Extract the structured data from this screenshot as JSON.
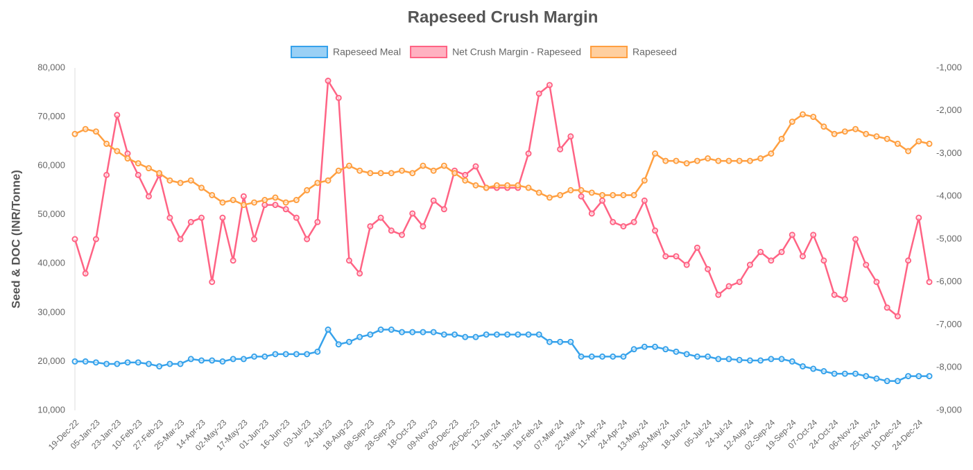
{
  "chart_data": {
    "type": "line",
    "title": "Rapeseed Crush Margin",
    "y_label": "Seed & DOC (INR/Tonne)",
    "categories": [
      "19-Dec-22",
      null,
      "05-Jan-23",
      null,
      "23-Jan-23",
      null,
      "10-Feb-23",
      null,
      "27-Feb-23",
      null,
      "25-Mar-23",
      null,
      "14-Apr-23",
      null,
      "02-May-23",
      null,
      "17-May-23",
      null,
      "01-Jun-23",
      null,
      "16-Jun-23",
      null,
      "03-Jul-23",
      null,
      "24-Jul-23",
      null,
      "18-Aug-23",
      null,
      "08-Sep-23",
      null,
      "28-Sep-23",
      null,
      "18-Oct-23",
      null,
      "09-Nov-23",
      null,
      "06-Dec-23",
      null,
      "26-Dec-23",
      null,
      "12-Jan-24",
      null,
      "31-Jan-24",
      null,
      "19-Feb-24",
      null,
      "07-Mar-24",
      null,
      "22-Mar-24",
      null,
      "11-Apr-24",
      null,
      "24-Apr-24",
      null,
      "13-May-24",
      null,
      "30-May-24",
      null,
      "18-Jun-24",
      null,
      "05-Jul-24",
      null,
      "24-Jul-24",
      null,
      "12-Aug-24",
      null,
      "02-Sep-24",
      null,
      "19-Sep-24",
      null,
      "07-Oct-24",
      null,
      "24-Oct-24",
      null,
      "06-Nov-24",
      null,
      "25-Nov-24",
      null,
      "10-Dec-24",
      null,
      "24-Dec-24",
      null
    ],
    "series": [
      {
        "name": "Rapeseed Meal",
        "color": "#36a2eb",
        "values": [
          20000,
          20000,
          19800,
          19500,
          19500,
          19800,
          19800,
          19500,
          19000,
          19500,
          19500,
          20500,
          20200,
          20200,
          20000,
          20500,
          20500,
          21000,
          21000,
          21500,
          21500,
          21500,
          21500,
          22000,
          26500,
          23500,
          24000,
          25000,
          25500,
          26500,
          26500,
          26000,
          26000,
          26000,
          26000,
          25500,
          25500,
          25000,
          25000,
          25500,
          25500,
          25500,
          25500,
          25500,
          25500,
          24000,
          24000,
          24000,
          21000,
          21000,
          21000,
          21000,
          21000,
          22500,
          23000,
          23000,
          22500,
          22000,
          21500,
          21000,
          21000,
          20500,
          20500,
          20300,
          20200,
          20200,
          20500,
          20500,
          20000,
          19000,
          18500,
          18000,
          17500,
          17500,
          17500,
          17000,
          16500,
          16000,
          16000,
          17000,
          17000,
          17000
        ]
      },
      {
        "name": "Net Crush Margin - Rapeseed",
        "color": "#ff6384",
        "axis": "y2",
        "values": [
          -5000,
          -5800,
          -5000,
          -3500,
          -2100,
          -3000,
          -3500,
          -4000,
          -3500,
          -4500,
          -5000,
          -4600,
          -4500,
          -6000,
          -4500,
          -5500,
          -4000,
          -5000,
          -4200,
          -4200,
          -4300,
          -4500,
          -5000,
          -4600,
          -1300,
          -1700,
          -5500,
          -5800,
          -4700,
          -4500,
          -4800,
          -4900,
          -4400,
          -4700,
          -4100,
          -4300,
          -3400,
          -3500,
          -3300,
          -3800,
          -3800,
          -3800,
          -3800,
          -3000,
          -1600,
          -1400,
          -2900,
          -2600,
          -4000,
          -4400,
          -4100,
          -4600,
          -4700,
          -4600,
          -4100,
          -4800,
          -5400,
          -5400,
          -5600,
          -5200,
          -5700,
          -6300,
          -6100,
          -6000,
          -5600,
          -5300,
          -5500,
          -5300,
          -4900,
          -5400,
          -4900,
          -5500,
          -6300,
          -6400,
          -5000,
          -5600,
          -6000,
          -6600,
          -6800,
          -5500,
          -4500,
          -6000
        ]
      },
      {
        "name": "Rapeseed",
        "color": "#ff9f40",
        "values": [
          66500,
          67500,
          67000,
          64500,
          63000,
          61500,
          60500,
          59500,
          58500,
          57000,
          56500,
          57000,
          55500,
          54000,
          52500,
          53000,
          52000,
          52500,
          53000,
          53500,
          52500,
          53000,
          55000,
          56500,
          57000,
          59000,
          60000,
          59000,
          58500,
          58500,
          58500,
          59000,
          58500,
          60000,
          59000,
          60000,
          58500,
          57000,
          56000,
          55500,
          56000,
          56000,
          56000,
          55500,
          54500,
          53500,
          54000,
          55000,
          55000,
          54500,
          54000,
          54000,
          54000,
          54000,
          57000,
          62500,
          61000,
          61000,
          60500,
          61000,
          61500,
          61000,
          61000,
          61000,
          61000,
          61500,
          62500,
          65500,
          69000,
          70500,
          70000,
          68000,
          66500,
          67000,
          67500,
          66500,
          66000,
          65500,
          64500,
          63000,
          65000,
          64500
        ]
      }
    ],
    "ylim": [
      10000,
      80000
    ],
    "yticks": [
      {
        "value": 10000,
        "label": "10,000"
      },
      {
        "value": 20000,
        "label": "20,000"
      },
      {
        "value": 30000,
        "label": "30,000"
      },
      {
        "value": 40000,
        "label": "40,000"
      },
      {
        "value": 50000,
        "label": "50,000"
      },
      {
        "value": 60000,
        "label": "60,000"
      },
      {
        "value": 70000,
        "label": "70,000"
      },
      {
        "value": 80000,
        "label": "80,000"
      }
    ],
    "y2lim": [
      -9000,
      -1000
    ],
    "y2ticks": [
      {
        "value": -9000,
        "label": "-9,000"
      },
      {
        "value": -8000,
        "label": "-8,000"
      },
      {
        "value": -7000,
        "label": "-7,000"
      },
      {
        "value": -6000,
        "label": "-6,000"
      },
      {
        "value": -5000,
        "label": "-5,000"
      },
      {
        "value": -4000,
        "label": "-4,000"
      },
      {
        "value": -3000,
        "label": "-3,000"
      },
      {
        "value": -2000,
        "label": "-2,000"
      },
      {
        "value": -1000,
        "label": "-1,000"
      }
    ],
    "grid": false,
    "legend": "top"
  }
}
